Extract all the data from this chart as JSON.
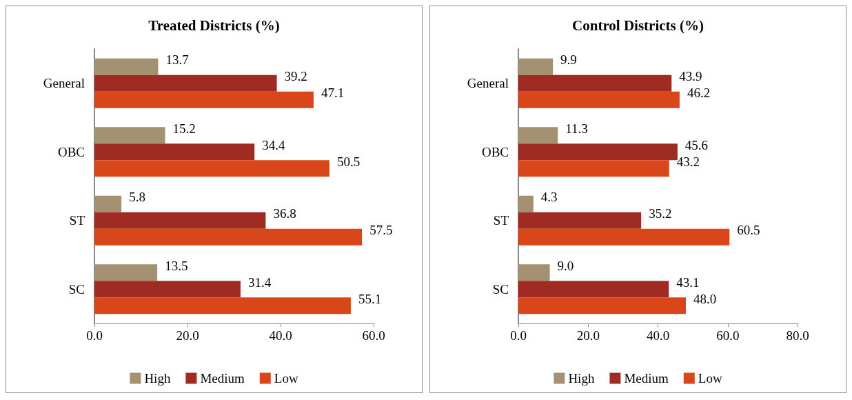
{
  "chart_data": [
    {
      "type": "bar",
      "orientation": "horizontal",
      "title": "Treated Districts (%)",
      "categories": [
        "General",
        "OBC",
        "ST",
        "SC"
      ],
      "series": [
        {
          "name": "High",
          "color": "#a39171",
          "values": [
            13.7,
            15.2,
            5.8,
            13.5
          ],
          "value_labels": [
            "13.7",
            "15.2",
            "5.8",
            "13.5"
          ]
        },
        {
          "name": "Medium",
          "color": "#a02b22",
          "values": [
            39.2,
            34.4,
            36.8,
            31.4
          ],
          "value_labels": [
            "39.2",
            "34.4",
            "36.8",
            "31.4"
          ]
        },
        {
          "name": "Low",
          "color": "#d9461a",
          "values": [
            47.1,
            50.5,
            57.5,
            55.1
          ],
          "value_labels": [
            "47.1",
            "50.5",
            "57.5",
            "55.1"
          ]
        }
      ],
      "xlim": [
        0,
        60
      ],
      "xticks": [
        {
          "value": 0,
          "label": "0.0"
        },
        {
          "value": 20,
          "label": "20.0"
        },
        {
          "value": 40,
          "label": "40.0"
        },
        {
          "value": 60,
          "label": "60.0"
        }
      ],
      "grid": false,
      "legend": "bottom"
    },
    {
      "type": "bar",
      "orientation": "horizontal",
      "title": "Control Districts (%)",
      "categories": [
        "General",
        "OBC",
        "ST",
        "SC"
      ],
      "series": [
        {
          "name": "High",
          "color": "#a39171",
          "values": [
            9.9,
            11.3,
            4.3,
            9.0
          ],
          "value_labels": [
            "9.9",
            "11.3",
            "4.3",
            "9.0"
          ]
        },
        {
          "name": "Medium",
          "color": "#a02b22",
          "values": [
            43.9,
            45.6,
            35.2,
            43.1
          ],
          "value_labels": [
            "43.9",
            "45.6",
            "35.2",
            "43.1"
          ]
        },
        {
          "name": "Low",
          "color": "#d9461a",
          "values": [
            46.2,
            43.2,
            60.5,
            48.0
          ],
          "value_labels": [
            "46.2",
            "43.2",
            "60.5",
            "48.0"
          ]
        }
      ],
      "xlim": [
        0,
        80
      ],
      "xticks": [
        {
          "value": 0,
          "label": "0.0"
        },
        {
          "value": 20,
          "label": "20.0"
        },
        {
          "value": 40,
          "label": "40.0"
        },
        {
          "value": 60,
          "label": "60.0"
        },
        {
          "value": 80,
          "label": "80.0"
        }
      ],
      "grid": false,
      "legend": "bottom"
    }
  ]
}
